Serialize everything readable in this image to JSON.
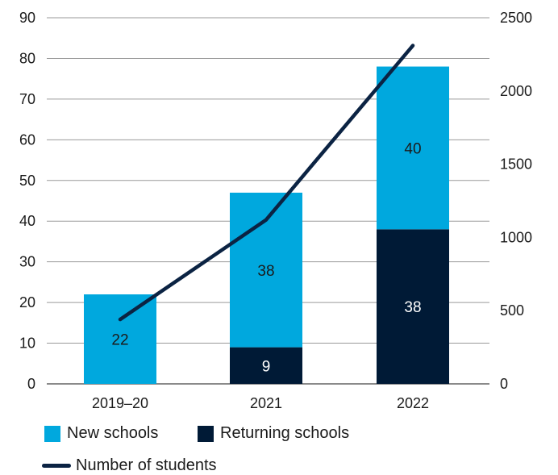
{
  "chart_data": {
    "type": "bar",
    "stacked": true,
    "categories": [
      "2019–20",
      "2021",
      "2022"
    ],
    "series": [
      {
        "name": "Returning schools",
        "values": [
          0,
          9,
          38
        ],
        "color": "#001a36",
        "axis": "left",
        "label_color": "#ffffff"
      },
      {
        "name": "New schools",
        "values": [
          22,
          38,
          40
        ],
        "color": "#00a8de",
        "axis": "left",
        "label_color": "#1b1b1b"
      },
      {
        "name": "Number of students",
        "type": "line",
        "values": [
          440,
          1120,
          2310
        ],
        "color": "#0b2343",
        "axis": "right"
      }
    ],
    "ylim_left": [
      0,
      90
    ],
    "yticks_left": [
      "0",
      "10",
      "20",
      "30",
      "40",
      "50",
      "60",
      "70",
      "80",
      "90"
    ],
    "ylim_right": [
      0,
      2500
    ],
    "yticks_right": [
      "0",
      "500",
      "1000",
      "1500",
      "2000",
      "2500"
    ],
    "grid": "horizontal",
    "legend_position": "bottom-left",
    "data_labels": true,
    "title": "",
    "xlabel": "",
    "ylabel": ""
  },
  "legend": {
    "new_schools": "New schools",
    "returning_schools": "Returning schools",
    "students": "Number of students"
  }
}
